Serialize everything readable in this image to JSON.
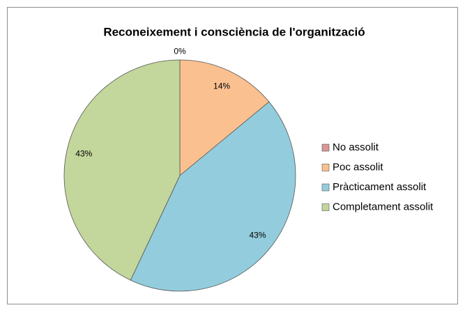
{
  "chart_data": {
    "type": "pie",
    "title": "Reconeixement i consciència de l'organització",
    "categories": [
      "No assolit",
      "Poc assolit",
      "Pràcticament assolit",
      "Completament assolit"
    ],
    "values": [
      0,
      14,
      43,
      43
    ],
    "value_labels": [
      "0%",
      "14%",
      "43%",
      "43%"
    ],
    "colors": [
      "#d99694",
      "#fac090",
      "#93cddd",
      "#c3d69b"
    ],
    "legend": "right"
  }
}
